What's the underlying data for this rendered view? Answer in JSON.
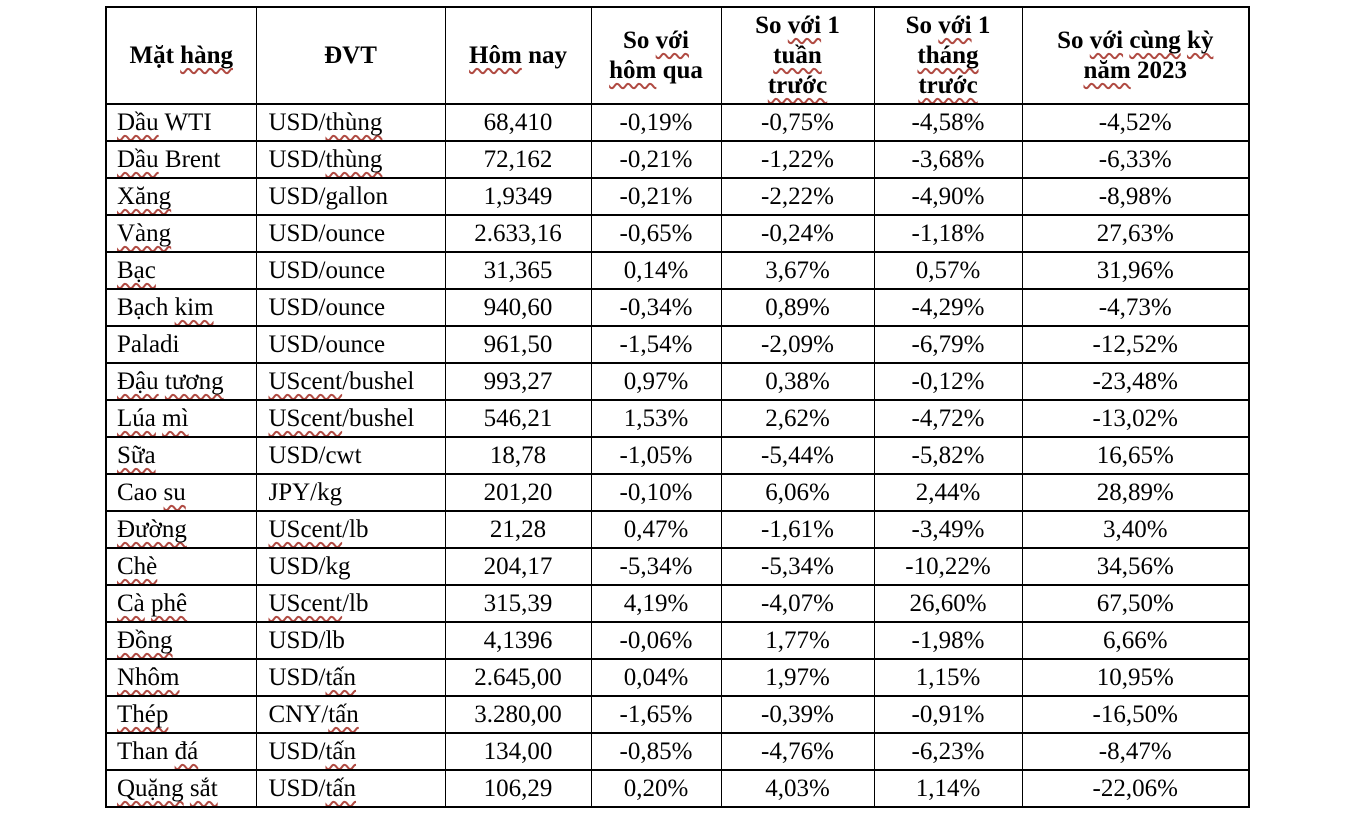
{
  "colors": {
    "page_background": "#ffffff",
    "table_border": "#000000",
    "text": "#000000",
    "spellcheck_squiggle": "#b04a42"
  },
  "table": {
    "headers": [
      {
        "id": "mat-hang",
        "parts": [
          {
            "t": "Mặt "
          },
          {
            "t": "hàng",
            "sq": true
          }
        ]
      },
      {
        "id": "dvt",
        "parts": [
          {
            "t": "ĐVT"
          }
        ]
      },
      {
        "id": "hom-nay",
        "parts": [
          {
            "t": "Hôm",
            "sq": true
          },
          {
            "t": " nay"
          }
        ]
      },
      {
        "id": "so-voi-hom-qua",
        "parts": [
          {
            "t": "So "
          },
          {
            "t": "với",
            "sq": true
          },
          {
            "br": true
          },
          {
            "t": "hôm",
            "sq": true
          },
          {
            "t": " qua"
          }
        ]
      },
      {
        "id": "so-voi-1-tuan-truoc",
        "parts": [
          {
            "t": "So "
          },
          {
            "t": "với",
            "sq": true
          },
          {
            "t": " 1"
          },
          {
            "br": true
          },
          {
            "t": "tuần",
            "sq": true
          },
          {
            "br": true
          },
          {
            "t": "trước",
            "sq": true
          }
        ]
      },
      {
        "id": "so-voi-1-thang-truoc",
        "parts": [
          {
            "t": "So "
          },
          {
            "t": "với",
            "sq": true
          },
          {
            "t": " 1"
          },
          {
            "br": true
          },
          {
            "t": "tháng",
            "sq": true
          },
          {
            "br": true
          },
          {
            "t": "trước",
            "sq": true
          }
        ]
      },
      {
        "id": "so-voi-cung-ky-nam-2023",
        "parts": [
          {
            "t": "So "
          },
          {
            "t": "với",
            "sq": true
          },
          {
            "t": " "
          },
          {
            "t": "cùng",
            "sq": true
          },
          {
            "t": " "
          },
          {
            "t": "kỳ",
            "sq": true
          },
          {
            "br": true
          },
          {
            "t": "năm",
            "sq": true
          },
          {
            "t": " 2023"
          }
        ]
      }
    ],
    "rows": [
      {
        "id": "dau-wti",
        "name": [
          {
            "t": "Dầu",
            "sq": true
          },
          {
            "t": " WTI"
          }
        ],
        "unit": [
          {
            "t": "USD/"
          },
          {
            "t": "thùng",
            "sq": true
          }
        ],
        "values": [
          "68,410",
          "-0,19%",
          "-0,75%",
          "-4,58%",
          "-4,52%"
        ]
      },
      {
        "id": "dau-brent",
        "name": [
          {
            "t": "Dầu",
            "sq": true
          },
          {
            "t": " Brent"
          }
        ],
        "unit": [
          {
            "t": "USD/"
          },
          {
            "t": "thùng",
            "sq": true
          }
        ],
        "values": [
          "72,162",
          "-0,21%",
          "-1,22%",
          "-3,68%",
          "-6,33%"
        ]
      },
      {
        "id": "xang",
        "name": [
          {
            "t": "Xăng",
            "sq": true
          }
        ],
        "unit": [
          {
            "t": "USD/gallon"
          }
        ],
        "values": [
          "1,9349",
          "-0,21%",
          "-2,22%",
          "-4,90%",
          "-8,98%"
        ]
      },
      {
        "id": "vang",
        "name": [
          {
            "t": "Vàng",
            "sq": true
          }
        ],
        "unit": [
          {
            "t": "USD/ounce"
          }
        ],
        "values": [
          "2.633,16",
          "-0,65%",
          "-0,24%",
          "-1,18%",
          "27,63%"
        ]
      },
      {
        "id": "bac",
        "name": [
          {
            "t": "Bạc",
            "sq": true
          }
        ],
        "unit": [
          {
            "t": "USD/ounce"
          }
        ],
        "values": [
          "31,365",
          "0,14%",
          "3,67%",
          "0,57%",
          "31,96%"
        ]
      },
      {
        "id": "bach-kim",
        "name": [
          {
            "t": "Bạch "
          },
          {
            "t": "kim",
            "sq": true
          }
        ],
        "unit": [
          {
            "t": "USD/ounce"
          }
        ],
        "values": [
          "940,60",
          "-0,34%",
          "0,89%",
          "-4,29%",
          "-4,73%"
        ]
      },
      {
        "id": "paladi",
        "name": [
          {
            "t": "Paladi"
          }
        ],
        "unit": [
          {
            "t": "USD/ounce"
          }
        ],
        "values": [
          "961,50",
          "-1,54%",
          "-2,09%",
          "-6,79%",
          "-12,52%"
        ]
      },
      {
        "id": "dau-tuong",
        "name": [
          {
            "t": "Đậu",
            "sq": true
          },
          {
            "t": " "
          },
          {
            "t": "tương",
            "sq": true
          }
        ],
        "unit": [
          {
            "t": "UScent",
            "sq": true
          },
          {
            "t": "/bushel"
          }
        ],
        "values": [
          "993,27",
          "0,97%",
          "0,38%",
          "-0,12%",
          "-23,48%"
        ]
      },
      {
        "id": "lua-mi",
        "name": [
          {
            "t": "Lúa",
            "sq": true
          },
          {
            "t": " "
          },
          {
            "t": "mì",
            "sq": true
          }
        ],
        "unit": [
          {
            "t": "UScent",
            "sq": true
          },
          {
            "t": "/bushel"
          }
        ],
        "values": [
          "546,21",
          "1,53%",
          "2,62%",
          "-4,72%",
          "-13,02%"
        ]
      },
      {
        "id": "sua",
        "name": [
          {
            "t": "Sữa",
            "sq": true
          }
        ],
        "unit": [
          {
            "t": "USD/cwt"
          }
        ],
        "values": [
          "18,78",
          "-1,05%",
          "-5,44%",
          "-5,82%",
          "16,65%"
        ]
      },
      {
        "id": "cao-su",
        "name": [
          {
            "t": "Cao "
          },
          {
            "t": "su",
            "sq": true
          }
        ],
        "unit": [
          {
            "t": "JPY/kg"
          }
        ],
        "values": [
          "201,20",
          "-0,10%",
          "6,06%",
          "2,44%",
          "28,89%"
        ]
      },
      {
        "id": "duong",
        "name": [
          {
            "t": "Đường",
            "sq": true
          }
        ],
        "unit": [
          {
            "t": "UScent",
            "sq": true
          },
          {
            "t": "/lb"
          }
        ],
        "values": [
          "21,28",
          "0,47%",
          "-1,61%",
          "-3,49%",
          "3,40%"
        ]
      },
      {
        "id": "che",
        "name": [
          {
            "t": "Chè",
            "sq": true
          }
        ],
        "unit": [
          {
            "t": "USD/kg"
          }
        ],
        "values": [
          "204,17",
          "-5,34%",
          "-5,34%",
          "-10,22%",
          "34,56%"
        ]
      },
      {
        "id": "ca-phe",
        "name": [
          {
            "t": "Cà",
            "sq": true
          },
          {
            "t": " "
          },
          {
            "t": "phê",
            "sq": true
          }
        ],
        "unit": [
          {
            "t": "UScent",
            "sq": true
          },
          {
            "t": "/lb"
          }
        ],
        "values": [
          "315,39",
          "4,19%",
          "-4,07%",
          "26,60%",
          "67,50%"
        ]
      },
      {
        "id": "dong",
        "name": [
          {
            "t": "Đồng",
            "sq": true
          }
        ],
        "unit": [
          {
            "t": "USD/lb"
          }
        ],
        "values": [
          "4,1396",
          "-0,06%",
          "1,77%",
          "-1,98%",
          "6,66%"
        ]
      },
      {
        "id": "nhom",
        "name": [
          {
            "t": "Nhôm",
            "sq": true
          }
        ],
        "unit": [
          {
            "t": "USD/"
          },
          {
            "t": "tấn",
            "sq": true
          }
        ],
        "values": [
          "2.645,00",
          "0,04%",
          "1,97%",
          "1,15%",
          "10,95%"
        ]
      },
      {
        "id": "thep",
        "name": [
          {
            "t": "Thép",
            "sq": true
          }
        ],
        "unit": [
          {
            "t": "CNY/"
          },
          {
            "t": "tấn",
            "sq": true
          }
        ],
        "values": [
          "3.280,00",
          "-1,65%",
          "-0,39%",
          "-0,91%",
          "-16,50%"
        ]
      },
      {
        "id": "than-da",
        "name": [
          {
            "t": "Than "
          },
          {
            "t": "đá",
            "sq": true
          }
        ],
        "unit": [
          {
            "t": "USD/"
          },
          {
            "t": "tấn",
            "sq": true
          }
        ],
        "values": [
          "134,00",
          "-0,85%",
          "-4,76%",
          "-6,23%",
          "-8,47%"
        ]
      },
      {
        "id": "quang-sat",
        "name": [
          {
            "t": "Quặng",
            "sq": true
          },
          {
            "t": " "
          },
          {
            "t": "sắt",
            "sq": true
          }
        ],
        "unit": [
          {
            "t": "USD/"
          },
          {
            "t": "tấn",
            "sq": true
          }
        ],
        "values": [
          "106,29",
          "0,20%",
          "4,03%",
          "1,14%",
          "-22,06%"
        ]
      }
    ],
    "value_cell_names": [
      "cell-today",
      "cell-vs-yesterday",
      "cell-vs-week",
      "cell-vs-month",
      "cell-vs-2023"
    ]
  }
}
